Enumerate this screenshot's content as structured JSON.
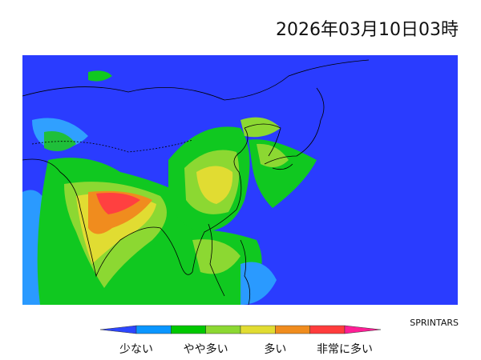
{
  "header": {
    "title": "2026年03月10日03時"
  },
  "map": {
    "credit": "SPRINTARS"
  },
  "legend": {
    "colors": [
      "#2d46ff",
      "#0a96ff",
      "#00c800",
      "#8cd832",
      "#e1dc32",
      "#f08c1e",
      "#ff3c3c",
      "#ff1e96"
    ],
    "labels": [
      "少ない",
      "やや多い",
      "多い",
      "非常に多い"
    ]
  }
}
